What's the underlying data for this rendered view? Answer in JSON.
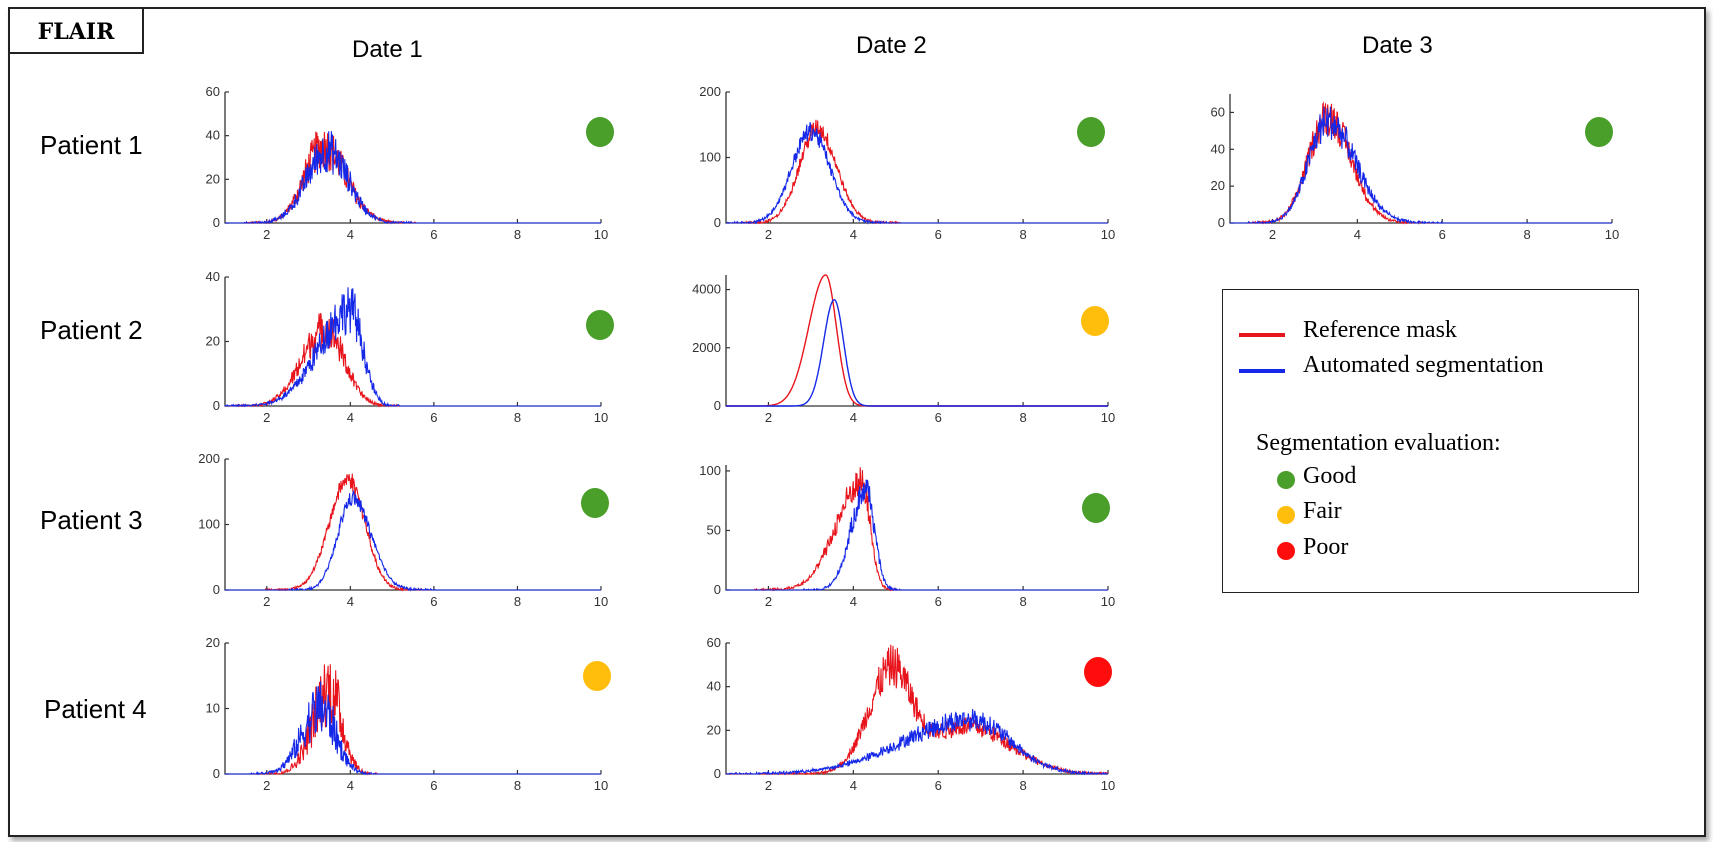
{
  "figure_label": "FLAIR",
  "columns": [
    "Date 1",
    "Date 2",
    "Date 3"
  ],
  "rows": [
    "Patient 1",
    "Patient 2",
    "Patient 3",
    "Patient 4"
  ],
  "colors": {
    "reference": "#e8141c",
    "automated": "#1528e8",
    "good": "#4a9e2a",
    "fair": "#ffbe0c",
    "poor": "#ff0d0d"
  },
  "legend": {
    "reference_label": "Reference mask",
    "automated_label": "Automated segmentation",
    "eval_title": "Segmentation evaluation:",
    "good": "Good",
    "fair": "Fair",
    "poor": "Poor"
  },
  "chart_data": [
    {
      "id": "p1d1",
      "type": "line",
      "row": "Patient 1",
      "column": "Date 1",
      "evaluation": "good",
      "xlim": [
        1,
        10
      ],
      "xticks": [
        2,
        4,
        6,
        8,
        10
      ],
      "ylim": [
        0,
        60
      ],
      "yticks": [
        0,
        20,
        40,
        60
      ],
      "noise": 0.3,
      "series": [
        {
          "name": "Reference mask",
          "peak": 35,
          "center": 3.35,
          "sigma_left": 0.45,
          "sigma_right": 0.55
        },
        {
          "name": "Automated segmentation",
          "peak": 33,
          "center": 3.45,
          "sigma_left": 0.5,
          "sigma_right": 0.5
        }
      ]
    },
    {
      "id": "p1d2",
      "type": "line",
      "row": "Patient 1",
      "column": "Date 2",
      "evaluation": "good",
      "xlim": [
        1,
        10
      ],
      "xticks": [
        2,
        4,
        6,
        8,
        10
      ],
      "ylim": [
        0,
        200
      ],
      "yticks": [
        0,
        100,
        200
      ],
      "noise": 0.1,
      "series": [
        {
          "name": "Reference mask",
          "peak": 145,
          "center": 3.15,
          "sigma_left": 0.42,
          "sigma_right": 0.45
        },
        {
          "name": "Automated segmentation",
          "peak": 140,
          "center": 3.0,
          "sigma_left": 0.45,
          "sigma_right": 0.45
        }
      ]
    },
    {
      "id": "p1d3",
      "type": "line",
      "row": "Patient 1",
      "column": "Date 3",
      "evaluation": "good",
      "xlim": [
        1,
        10
      ],
      "xticks": [
        2,
        4,
        6,
        8,
        10
      ],
      "ylim": [
        0,
        70
      ],
      "yticks": [
        0,
        20,
        40,
        60
      ],
      "noise": 0.18,
      "series": [
        {
          "name": "Reference mask",
          "peak": 58,
          "center": 3.3,
          "sigma_left": 0.45,
          "sigma_right": 0.55
        },
        {
          "name": "Automated segmentation",
          "peak": 55,
          "center": 3.3,
          "sigma_left": 0.45,
          "sigma_right": 0.65
        }
      ]
    },
    {
      "id": "p2d1",
      "type": "line",
      "row": "Patient 2",
      "column": "Date 1",
      "evaluation": "good",
      "xlim": [
        1,
        10
      ],
      "xticks": [
        2,
        4,
        6,
        8,
        10
      ],
      "ylim": [
        0,
        40
      ],
      "yticks": [
        0,
        20,
        40
      ],
      "noise": 0.25,
      "series": [
        {
          "name": "Reference mask",
          "peak": 24,
          "center": 3.4,
          "sigma_left": 0.55,
          "sigma_right": 0.45
        },
        {
          "name": "Automated segmentation",
          "peak": 30,
          "center": 4.0,
          "sigma_left": 0.75,
          "sigma_right": 0.3
        }
      ]
    },
    {
      "id": "p2d2",
      "type": "line",
      "row": "Patient 2",
      "column": "Date 2",
      "evaluation": "fair",
      "xlim": [
        1,
        10
      ],
      "xticks": [
        2,
        4,
        6,
        8,
        10
      ],
      "ylim": [
        0,
        4500
      ],
      "yticks": [
        0,
        2000,
        4000
      ],
      "noise": 0.0,
      "series": [
        {
          "name": "Reference mask",
          "peak": 4500,
          "center": 3.35,
          "sigma_left": 0.4,
          "sigma_right": 0.25
        },
        {
          "name": "Automated segmentation",
          "peak": 3650,
          "center": 3.55,
          "sigma_left": 0.25,
          "sigma_right": 0.22
        }
      ]
    },
    {
      "id": "p3d1",
      "type": "line",
      "row": "Patient 3",
      "column": "Date 1",
      "evaluation": "good",
      "xlim": [
        1,
        10
      ],
      "xticks": [
        2,
        4,
        6,
        8,
        10
      ],
      "ylim": [
        0,
        200
      ],
      "yticks": [
        0,
        100,
        200
      ],
      "noise": 0.08,
      "series": [
        {
          "name": "Reference mask",
          "peak": 170,
          "center": 3.95,
          "sigma_left": 0.45,
          "sigma_right": 0.4
        },
        {
          "name": "Automated segmentation",
          "peak": 140,
          "center": 4.05,
          "sigma_left": 0.35,
          "sigma_right": 0.45
        }
      ]
    },
    {
      "id": "p3d2",
      "type": "line",
      "row": "Patient 3",
      "column": "Date 2",
      "evaluation": "good",
      "xlim": [
        1,
        10
      ],
      "xticks": [
        2,
        4,
        6,
        8,
        10
      ],
      "ylim": [
        0,
        105
      ],
      "yticks": [
        0,
        50,
        100
      ],
      "noise": 0.15,
      "series": [
        {
          "name": "Reference mask",
          "peak": 90,
          "center": 4.2,
          "sigma_left": 0.6,
          "sigma_right": 0.2
        },
        {
          "name": "Automated segmentation",
          "peak": 85,
          "center": 4.3,
          "sigma_left": 0.35,
          "sigma_right": 0.2
        }
      ]
    },
    {
      "id": "p4d1",
      "type": "line",
      "row": "Patient 4",
      "column": "Date 1",
      "evaluation": "fair",
      "xlim": [
        1,
        10
      ],
      "xticks": [
        2,
        4,
        6,
        8,
        10
      ],
      "ylim": [
        0,
        20
      ],
      "yticks": [
        0,
        10,
        20
      ],
      "noise": 0.45,
      "series": [
        {
          "name": "Reference mask",
          "peak": 13,
          "center": 3.5,
          "sigma_left": 0.4,
          "sigma_right": 0.3
        },
        {
          "name": "Automated segmentation",
          "peak": 10,
          "center": 3.3,
          "sigma_left": 0.45,
          "sigma_right": 0.35
        }
      ]
    },
    {
      "id": "p4d2",
      "type": "line",
      "row": "Patient 4",
      "column": "Date 2",
      "evaluation": "poor",
      "xlim": [
        1,
        10
      ],
      "xticks": [
        2,
        4,
        6,
        8,
        10
      ],
      "ylim": [
        0,
        60
      ],
      "yticks": [
        0,
        20,
        40,
        60
      ],
      "noise": 0.2,
      "series": [
        {
          "name": "Reference mask",
          "peak": 45,
          "center": 4.9,
          "sigma_left": 0.55,
          "sigma_right": 0.45,
          "second_peak": 22,
          "second_center": 6.7,
          "second_sigma": 1.0
        },
        {
          "name": "Automated segmentation",
          "peak": 25,
          "center": 6.8,
          "sigma_left": 1.6,
          "sigma_right": 0.9
        }
      ]
    }
  ]
}
